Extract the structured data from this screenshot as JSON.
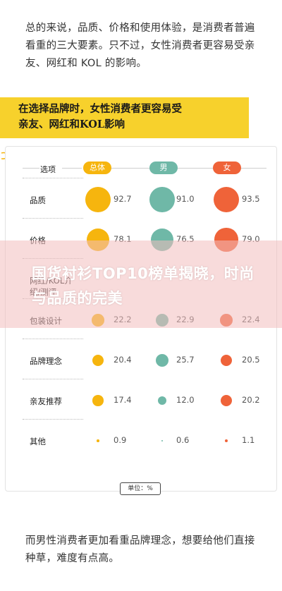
{
  "article": {
    "paragraph_top": "总的来说，品质、价格和使用体验，是消费者普遍看重的三大要素。只不过，女性消费者更容易受亲友、网红和 KOL 的影响。",
    "banner_line1": "在选择品牌时，女性消费者更容易受",
    "banner_line2": "亲友、网红和KOL影响",
    "paragraph_bottom": "而男性消费者更加看重品牌理念，想要给他们直接种草，难度有点高。",
    "overlay_title": "国货衬衫TOP10榜单揭晓，时尚与品质的完美"
  },
  "colors": {
    "total": "#f6b50e",
    "male": "#6fb8a7",
    "female": "#ef6339",
    "banner": "#f7d12c"
  },
  "chart_data": {
    "type": "table",
    "row_header": "选项",
    "columns": [
      "总体",
      "男",
      "女"
    ],
    "unit": "单位：%",
    "rows": [
      {
        "label": "品质",
        "values": [
          92.7,
          91.0,
          93.5
        ]
      },
      {
        "label": "价格",
        "values": [
          78.1,
          76.5,
          79.0
        ]
      },
      {
        "label": "网红/KOL介绍/测评",
        "values": [
          null,
          null,
          null
        ]
      },
      {
        "label": "包装设计",
        "values": [
          22.2,
          22.9,
          22.4
        ]
      },
      {
        "label": "品牌理念",
        "values": [
          20.4,
          25.7,
          20.5
        ]
      },
      {
        "label": "亲友推荐",
        "values": [
          17.4,
          12.0,
          20.2
        ]
      },
      {
        "label": "其他",
        "values": [
          0.9,
          0.6,
          1.1
        ]
      }
    ]
  }
}
